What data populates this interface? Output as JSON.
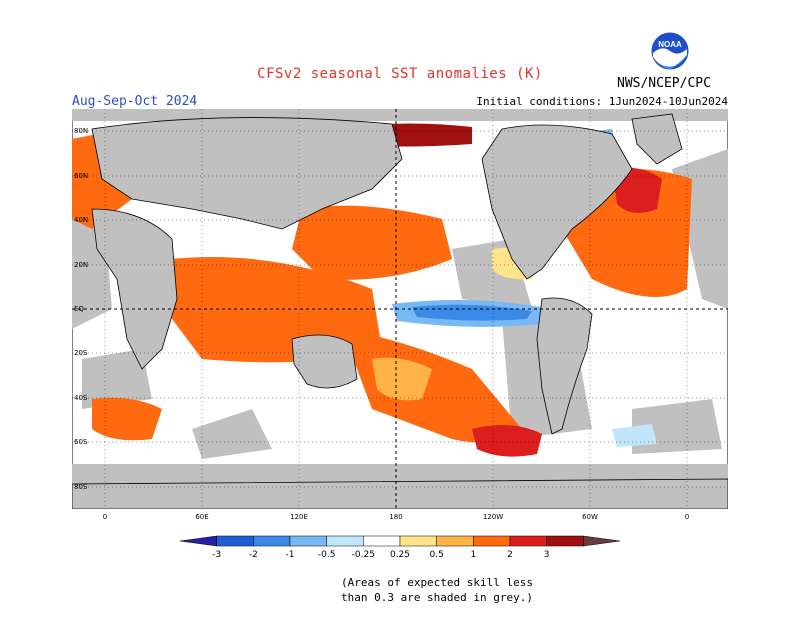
{
  "header": {
    "title": "CFSv2 seasonal SST anomalies (K)",
    "season": "Aug-Sep-Oct 2024",
    "initial_conditions": "Initial conditions: 1Jun2024-10Jun2024",
    "agency": "NWS/NCEP/CPC",
    "logo_text": "NOAA"
  },
  "map": {
    "lat_labels": [
      "80N",
      "60N",
      "40N",
      "20N",
      "EQ",
      "20S",
      "40S",
      "60S",
      "80S"
    ],
    "lon_labels": [
      "0",
      "60E",
      "120E",
      "180",
      "120W",
      "60W",
      "0"
    ],
    "colors": {
      "land": "#c0c0c0",
      "ocean_neutral": "#ffffff",
      "grid": "#000000"
    }
  },
  "colorbar": {
    "tick_labels": [
      "-3",
      "-2",
      "-1",
      "-0.5",
      "-0.25",
      "0.25",
      "0.5",
      "1",
      "2",
      "3"
    ],
    "colors": [
      "#2b1fa8",
      "#1f5fd6",
      "#3c8ae8",
      "#78b8f5",
      "#bfe6fa",
      "#ffffff",
      "#ffe48a",
      "#ffb347",
      "#ff6a10",
      "#dc1e1e",
      "#a01010",
      "#6b3a3a"
    ]
  },
  "note": {
    "line1": "(Areas of expected skill less",
    "line2": "than 0.3 are shaded in grey.)"
  }
}
